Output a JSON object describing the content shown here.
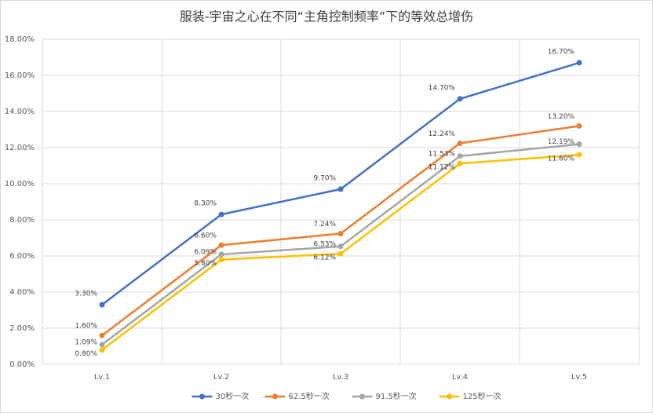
{
  "chart_data": {
    "type": "line",
    "title": "服装-宇宙之心在不同“主角控制频率”下的等效总增伤",
    "categories": [
      "Lv.1",
      "Lv.2",
      "Lv.3",
      "Lv.4",
      "Lv.5"
    ],
    "series": [
      {
        "name": "30秒一次",
        "color": "#4472c4",
        "values": [
          3.3,
          8.3,
          9.7,
          14.7,
          16.7
        ],
        "value_labels": [
          "3.30%",
          "8.30%",
          "9.70%",
          "14.70%",
          "16.70%"
        ]
      },
      {
        "name": "62.5秒一次",
        "color": "#ed7d31",
        "values": [
          1.6,
          6.6,
          7.24,
          12.24,
          13.2
        ],
        "value_labels": [
          "1.60%",
          "6.60%",
          "7.24%",
          "12.24%",
          "13.20%"
        ]
      },
      {
        "name": "91.5秒一次",
        "color": "#a5a5a5",
        "values": [
          1.09,
          6.09,
          6.53,
          11.53,
          12.19
        ],
        "value_labels": [
          "1.09%",
          "6.09%",
          "6.53%",
          "11.53%",
          "12.19%"
        ]
      },
      {
        "name": "125秒一次",
        "color": "#ffc000",
        "values": [
          0.8,
          5.8,
          6.12,
          11.12,
          11.6
        ],
        "value_labels": [
          "0.80%",
          "5.80%",
          "6.12%",
          "11.12%",
          "11.60%"
        ]
      }
    ],
    "ylim": [
      0,
      18
    ],
    "yticks": [
      {
        "value": 0,
        "label": "0.00%"
      },
      {
        "value": 2,
        "label": "2.00%"
      },
      {
        "value": 4,
        "label": "4.00%"
      },
      {
        "value": 6,
        "label": "6.00%"
      },
      {
        "value": 8,
        "label": "8.00%"
      },
      {
        "value": 10,
        "label": "10.00%"
      },
      {
        "value": 12,
        "label": "12.00%"
      },
      {
        "value": 14,
        "label": "14.00%"
      },
      {
        "value": 16,
        "label": "16.00%"
      },
      {
        "value": 18,
        "label": "18.00%"
      }
    ],
    "grid": true,
    "legend": "bottom"
  }
}
